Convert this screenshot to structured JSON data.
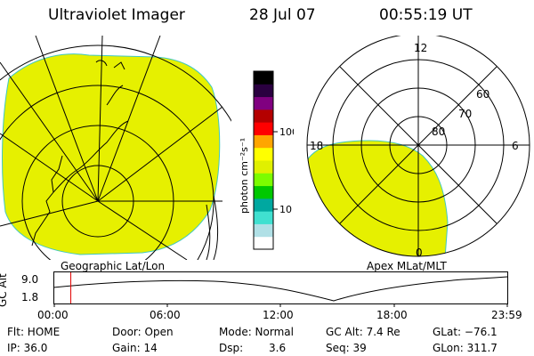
{
  "header": {
    "instrument": "Ultraviolet Imager",
    "date": "28 Jul 07",
    "time": "00:55:19 UT"
  },
  "geo_panel": {
    "label": "Geographic Lat/Lon"
  },
  "apex_panel": {
    "label": "Apex MLat/MLT",
    "mlt_labels": [
      "12",
      "18",
      "6",
      "0"
    ],
    "lat_labels": [
      "60",
      "70",
      "80"
    ]
  },
  "colorbar": {
    "unit_label": "photon cm⁻²s⁻¹",
    "ticks": [
      "100",
      "10"
    ],
    "colors": [
      "#ffffff",
      "#b0e0e6",
      "#40e0d0",
      "#00a8a0",
      "#00c800",
      "#7cfc00",
      "#e0f000",
      "#ffff00",
      "#ffa500",
      "#ff0000",
      "#b40000",
      "#800080",
      "#2a0040",
      "#000000"
    ]
  },
  "altitude_plot": {
    "ylabel": "GC Alt",
    "yticks": [
      "9.0",
      "1.8"
    ],
    "xticks": [
      "00:00",
      "06:00",
      "12:00",
      "18:00",
      "23:59"
    ],
    "marker_time_hours": 0.92
  },
  "info": {
    "flt": "Flt: HOME",
    "ip": "IP: 36.0",
    "door": "Door: Open",
    "gain": "Gain: 14",
    "mode": "Mode: Normal",
    "dsp_label": "Dsp:",
    "dsp_value": "3.6",
    "gc_alt": "GC Alt: 7.4 Re",
    "seq": "Seq: 39",
    "glat": "GLat: −76.1",
    "glon": "GLon: 311.7"
  },
  "colors": {
    "emission": "#e6f000",
    "edge": "#40c8c0"
  }
}
